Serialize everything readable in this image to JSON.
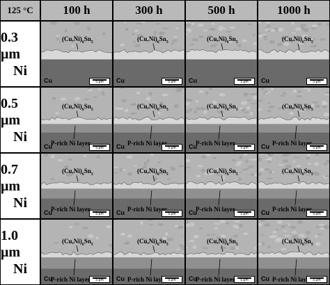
{
  "figure": {
    "corner_label": "125 °C",
    "columns": [
      "100 h",
      "300 h",
      "500 h",
      "1000 h"
    ],
    "rows": [
      {
        "thickness": "0.3 μm",
        "metal": "Ni"
      },
      {
        "thickness": "0.5 μm",
        "metal": "Ni"
      },
      {
        "thickness": "0.7 μm",
        "metal": "Ni"
      },
      {
        "thickness": "1.0 μm",
        "metal": "Ni"
      }
    ],
    "imc_label_main": "(Cu,Ni)",
    "imc_label_sub1": "6",
    "imc_label_mid": "Sn",
    "imc_label_sub2": "5",
    "ni_layer_label": "P-rich Ni layer",
    "substrate_label": "Cu",
    "scale_bar_label": "5 μm"
  },
  "colors": {
    "header_bg": "#b9b9b9",
    "solder": "#b4b4b4",
    "imc": "#d8d8d8",
    "ni_layer": "#909090",
    "copper": "#6a6a6a"
  }
}
